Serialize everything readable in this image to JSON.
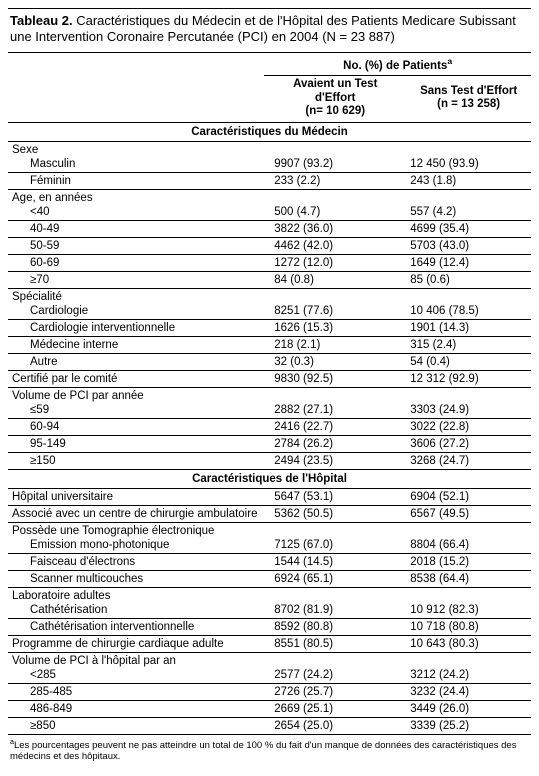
{
  "title_bold": "Tableau 2.",
  "title_rest": " Caractéristiques du Médecin et de l'Hôpital des Patients Medicare Subissant une Intervention Coronaire Percutanée (PCI) en 2004 (N = 23 887)",
  "spanner": "No. (%) de Patients",
  "spanner_sup": "a",
  "col_a_l1": "Avaient un Test d'Effort",
  "col_a_l2": "(n= 10 629)",
  "col_b_l1": "Sans Test d'Effort",
  "col_b_l2": "(n = 13 258)",
  "section1": "Caractéristiques du Médecin",
  "section2": "Caractéristiques de l'Hôpital",
  "groups": {
    "sexe": "Sexe",
    "age": "Age, en années",
    "spec": "Spécialité",
    "cert": "Certifié par le comité",
    "volpci": "Volume de PCI par année",
    "hopuniv": "Hôpital universitaire",
    "assoc": "Associé avec un centre de chirurgie ambulatoire",
    "tomo": "Possède une Tomographie électronique",
    "lab": "Laboratoire adultes",
    "prog": "Programme de chirurgie cardiaque adulte",
    "volhop": "Volume de PCI à l'hôpital par an"
  },
  "rows": {
    "sexe_m": {
      "l": "Masculin",
      "a": "9907 (93.2)",
      "b": "12 450 (93.9)"
    },
    "sexe_f": {
      "l": "Féminin",
      "a": "233 (2.2)",
      "b": "243 (1.8)"
    },
    "age_40": {
      "l": "<40",
      "a": "500 (4.7)",
      "b": "557 (4.2)"
    },
    "age_4049": {
      "l": "40-49",
      "a": "3822 (36.0)",
      "b": "4699 (35.4)"
    },
    "age_5059": {
      "l": "50-59",
      "a": "4462 (42.0)",
      "b": "5703 (43.0)"
    },
    "age_6069": {
      "l": "60-69",
      "a": "1272 (12.0)",
      "b": "1649 (12.4)"
    },
    "age_70": {
      "l": "≥70",
      "a": "84 (0.8)",
      "b": "85 (0.6)"
    },
    "spec_card": {
      "l": "Cardiologie",
      "a": "8251 (77.6)",
      "b": "10 406 (78.5)"
    },
    "spec_int": {
      "l": "Cardiologie interventionnelle",
      "a": "1626 (15.3)",
      "b": "1901 (14.3)"
    },
    "spec_med": {
      "l": "Médecine interne",
      "a": "218 (2.1)",
      "b": "315 (2.4)"
    },
    "spec_aut": {
      "l": "Autre",
      "a": "32 (0.3)",
      "b": "54 (0.4)"
    },
    "cert": {
      "a": "9830 (92.5)",
      "b": "12 312 (92.9)"
    },
    "vol_59": {
      "l": "≤59",
      "a": "2882 (27.1)",
      "b": "3303 (24.9)"
    },
    "vol_6094": {
      "l": "60-94",
      "a": "2416 (22.7)",
      "b": "3022 (22.8)"
    },
    "vol_95149": {
      "l": "95-149",
      "a": "2784 (26.2)",
      "b": "3606 (27.2)"
    },
    "vol_150": {
      "l": "≥150",
      "a": "2494 (23.5)",
      "b": "3268 (24.7)"
    },
    "hopuniv": {
      "a": "5647 (53.1)",
      "b": "6904 (52.1)"
    },
    "assoc": {
      "a": "5362 (50.5)",
      "b": "6567 (49.5)"
    },
    "tomo_mono": {
      "l": "Emission mono-photonique",
      "a": "7125 (67.0)",
      "b": "8804 (66.4)"
    },
    "tomo_fais": {
      "l": "Faisceau d'électrons",
      "a": "1544 (14.5)",
      "b": "2018 (15.2)"
    },
    "tomo_scan": {
      "l": "Scanner multicouches",
      "a": "6924 (65.1)",
      "b": "8538 (64.4)"
    },
    "lab_cath": {
      "l": "Cathétérisation",
      "a": "8702 (81.9)",
      "b": "10 912 (82.3)"
    },
    "lab_cint": {
      "l": "Cathétérisation interventionnelle",
      "a": "8592 (80.8)",
      "b": "10 718 (80.8)"
    },
    "prog": {
      "a": "8551 (80.5)",
      "b": "10 643 (80.3)"
    },
    "vh_285": {
      "l": "<285",
      "a": "2577 (24.2)",
      "b": "3212 (24.2)"
    },
    "vh_285485": {
      "l": "285-485",
      "a": "2726 (25.7)",
      "b": "3232 (24.4)"
    },
    "vh_486849": {
      "l": "486-849",
      "a": "2669 (25.1)",
      "b": "3449 (26.0)"
    },
    "vh_850": {
      "l": "≥850",
      "a": "2654 (25.0)",
      "b": "3339 (25.2)"
    }
  },
  "footnote_sup": "a",
  "footnote": "Les pourcentages peuvent ne pas atteindre un total de 100 % du fait d'un manque de données des caractéristiques des médecins et des hôpitaux."
}
